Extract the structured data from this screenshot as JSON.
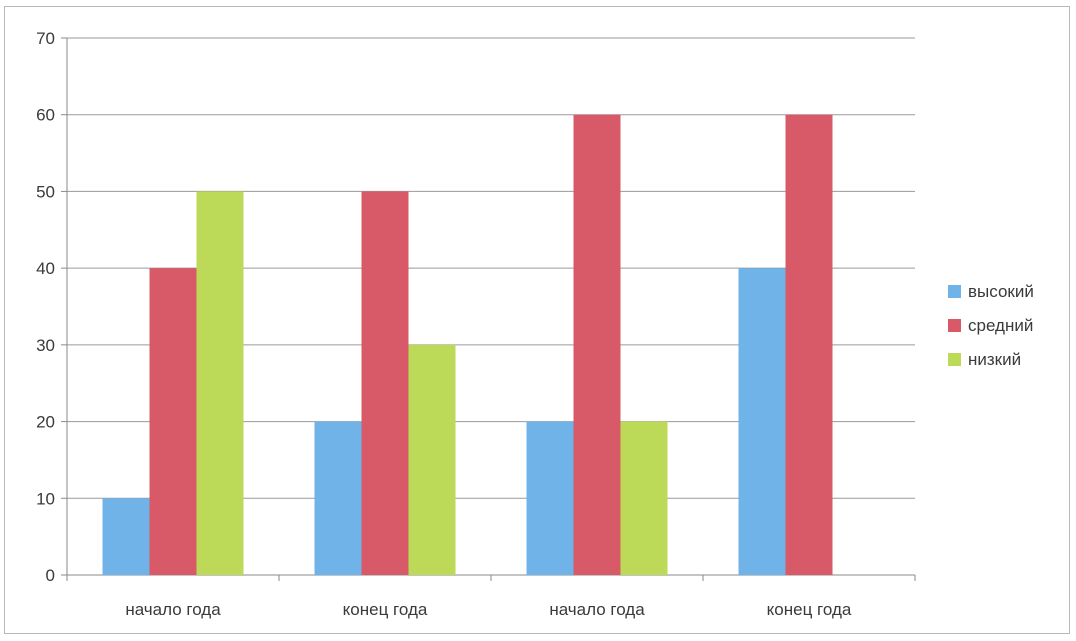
{
  "chart_data": {
    "type": "bar",
    "categories": [
      "начало года",
      "конец года",
      "начало года",
      "конец года"
    ],
    "series": [
      {
        "name": "высокий",
        "values": [
          10,
          20,
          20,
          40
        ],
        "color": "#6fb3e8"
      },
      {
        "name": "средний",
        "values": [
          40,
          50,
          60,
          60
        ],
        "color": "#d85a68"
      },
      {
        "name": "низкий",
        "values": [
          50,
          30,
          20,
          0
        ],
        "color": "#bcd957"
      }
    ],
    "ylim": [
      0,
      70
    ],
    "yticks": [
      0,
      10,
      20,
      30,
      40,
      50,
      60,
      70
    ],
    "grid": true,
    "legend": "right"
  }
}
